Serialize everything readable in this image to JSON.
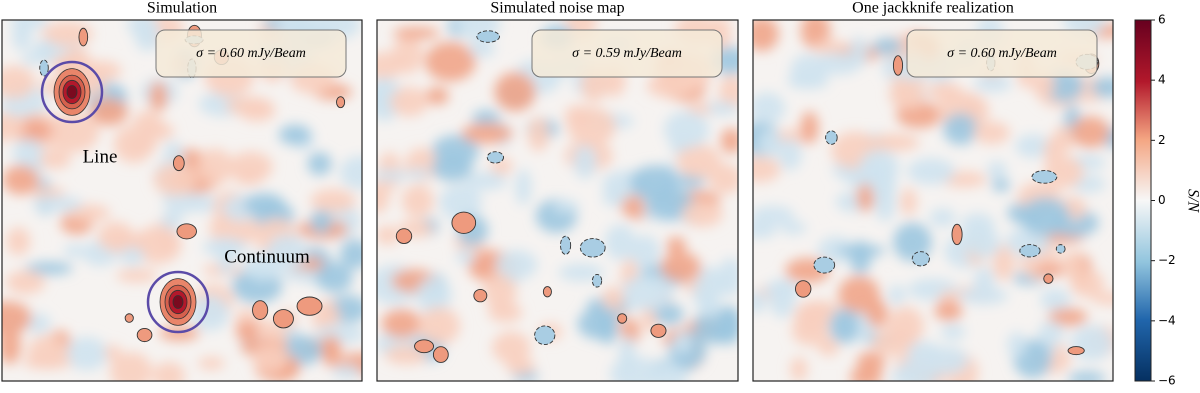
{
  "chart_data": {
    "type": "image-panels",
    "panels": [
      {
        "title": "Simulation",
        "annotation": "σ = 0.60 mJy/Beam"
      },
      {
        "title": "Simulated noise map",
        "annotation": "σ = 0.59 mJy/Beam"
      },
      {
        "title": "One jackknife realization",
        "annotation": "σ = 0.60 mJy/Beam"
      }
    ],
    "labels": [
      "Line",
      "Continuum"
    ],
    "colorbar": {
      "label": "S/N",
      "clim": [
        -6,
        6
      ],
      "ticks": [
        {
          "value": -6,
          "label": "−6"
        },
        {
          "value": -4,
          "label": "−4"
        },
        {
          "value": -2,
          "label": "−2"
        },
        0,
        2,
        4,
        6
      ]
    }
  }
}
